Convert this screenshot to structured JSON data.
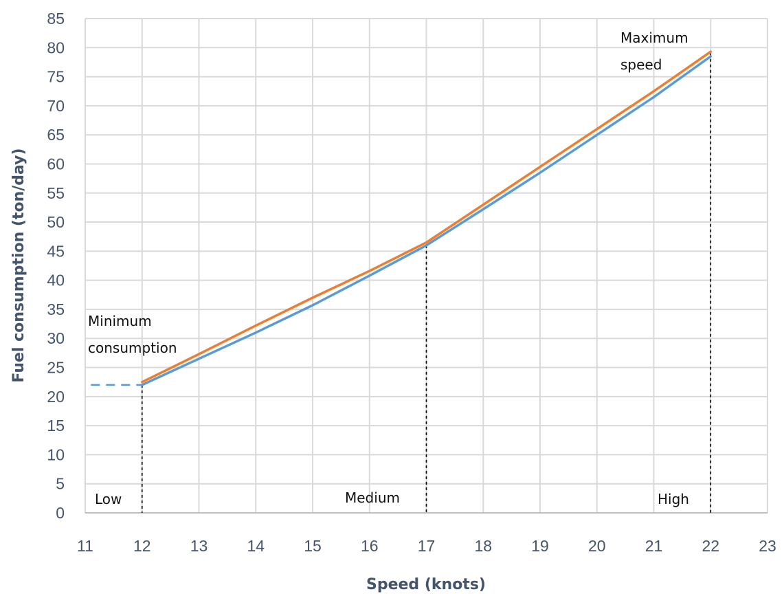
{
  "chart_data": {
    "type": "line",
    "title": "",
    "xlabel": "Speed (knots)",
    "ylabel": "Fuel consumption (ton/day)",
    "xlim": [
      11,
      23
    ],
    "ylim": [
      0,
      85
    ],
    "x_ticks": [
      "11",
      "12",
      "13",
      "14",
      "15",
      "16",
      "17",
      "18",
      "19",
      "20",
      "21",
      "22",
      "23"
    ],
    "y_ticks": [
      "0",
      "5",
      "10",
      "15",
      "20",
      "25",
      "30",
      "35",
      "40",
      "45",
      "50",
      "55",
      "60",
      "65",
      "70",
      "75",
      "80",
      "85"
    ],
    "grid": true,
    "legend": "none",
    "series": [
      {
        "color": "#5b9bd5",
        "style": "solid",
        "x": [
          12,
          13,
          14,
          15,
          16,
          17,
          18,
          19,
          20,
          21,
          22
        ],
        "y": [
          22,
          26.5,
          31,
          35.7,
          40.8,
          46,
          52.2,
          58.5,
          65,
          71.5,
          78.5
        ]
      },
      {
        "color": "#ed7d31",
        "style": "solid",
        "x": [
          12,
          13,
          14,
          15,
          16,
          17,
          18,
          19,
          20,
          21,
          22
        ],
        "y": [
          22.5,
          27.3,
          32.2,
          37,
          41.6,
          46.5,
          53,
          59.5,
          66,
          72.5,
          79.3
        ]
      },
      {
        "color": "#5b9bd5",
        "style": "dashed",
        "x": [
          11.1,
          12
        ],
        "y": [
          22,
          22
        ]
      }
    ],
    "reference_lines": [
      {
        "x": 12,
        "y_top": 22
      },
      {
        "x": 17,
        "y_top": 46
      },
      {
        "x": 22,
        "y_top": 79
      }
    ],
    "annotations": {
      "minimum_line1": "Minimum",
      "minimum_line2": "consumption",
      "maximum_line1": "Maximum",
      "maximum_line2": "speed",
      "low": "Low",
      "medium": "Medium",
      "high": "High"
    }
  }
}
